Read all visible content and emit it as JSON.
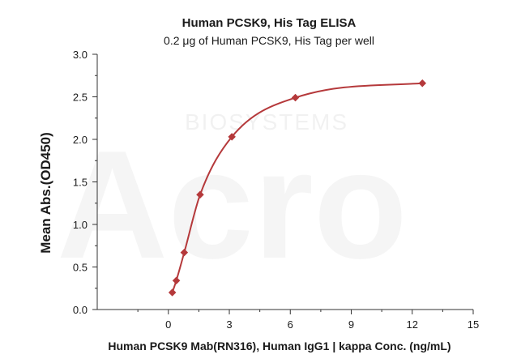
{
  "chart_data": {
    "type": "scatter",
    "title": "Human PCSK9, His Tag ELISA",
    "subtitle": "0.2 μg of Human PCSK9, His Tag per well",
    "xlabel": "Human PCSK9 Mab(RN316), Human IgG1 | kappa Conc. (ng/mL)",
    "ylabel": "Mean Abs.(OD450)",
    "xlim": [
      -3.5,
      15
    ],
    "ylim": [
      0,
      3.0
    ],
    "xticks": [
      0,
      3,
      6,
      9,
      12,
      15
    ],
    "yticks": [
      0.0,
      0.5,
      1.0,
      1.5,
      2.0,
      2.5,
      3.0
    ],
    "xtick_labels": [
      "0",
      "3",
      "6",
      "9",
      "12",
      "15"
    ],
    "ytick_labels": [
      "0.0",
      "0.5",
      "1.0",
      "1.5",
      "2.0",
      "2.5",
      "3.0"
    ],
    "series": [
      {
        "x": [
          0.195,
          0.39,
          0.781,
          1.5625,
          3.125,
          6.25,
          12.5
        ],
        "y": [
          0.2,
          0.34,
          0.67,
          1.35,
          2.03,
          2.49,
          2.66
        ],
        "marker": "diamond",
        "fit": "4PL curve"
      }
    ],
    "colors": {
      "series": "#b5393b",
      "axis": "#333333"
    },
    "grid": false,
    "legend": "none",
    "watermark": {
      "main": "Acro",
      "sub": "BIOSYSTEMS"
    }
  }
}
